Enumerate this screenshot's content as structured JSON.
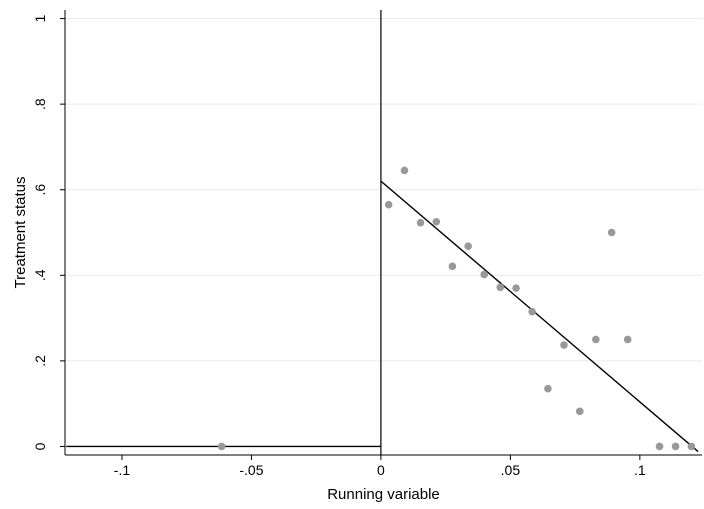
{
  "chart_data": {
    "type": "scatter",
    "title": "",
    "xlabel": "Running variable",
    "ylabel": "Treatment status",
    "xlim": [
      -0.122,
      0.124
    ],
    "ylim": [
      -0.02,
      1.02
    ],
    "x_ticks": [
      -0.1,
      -0.05,
      0,
      0.05,
      0.1
    ],
    "x_tick_labels": [
      "-.1",
      "-.05",
      "0",
      ".05",
      ".1"
    ],
    "y_ticks": [
      0,
      0.2,
      0.4,
      0.6,
      0.8,
      1
    ],
    "y_tick_labels": [
      "0",
      ".2",
      ".4",
      ".6",
      ".8",
      "1"
    ],
    "grid": "horizontal",
    "cutoff": 0,
    "colors": {
      "points": "#999999",
      "lines": "#000000",
      "grid": "#eaeaea",
      "axes": "#000000"
    },
    "series": [
      {
        "type": "scatter",
        "points": [
          [
            -0.0615,
            0.0
          ],
          [
            0.003,
            0.565
          ],
          [
            0.0091,
            0.645
          ],
          [
            0.0153,
            0.523
          ],
          [
            0.0214,
            0.525
          ],
          [
            0.0276,
            0.421
          ],
          [
            0.0337,
            0.468
          ],
          [
            0.0399,
            0.402
          ],
          [
            0.0461,
            0.372
          ],
          [
            0.0522,
            0.37
          ],
          [
            0.0584,
            0.315
          ],
          [
            0.0645,
            0.135
          ],
          [
            0.0707,
            0.237
          ],
          [
            0.0768,
            0.082
          ],
          [
            0.083,
            0.25
          ],
          [
            0.0891,
            0.5
          ],
          [
            0.0953,
            0.25
          ],
          [
            0.1076,
            0.0
          ],
          [
            0.1138,
            0.0
          ],
          [
            0.1199,
            0.0
          ]
        ]
      },
      {
        "type": "line",
        "points": [
          [
            -0.1215,
            0.0
          ],
          [
            0.0,
            0.0
          ]
        ]
      },
      {
        "type": "line",
        "points": [
          [
            0.0,
            0.62
          ],
          [
            0.1225,
            -0.012
          ]
        ]
      }
    ]
  }
}
